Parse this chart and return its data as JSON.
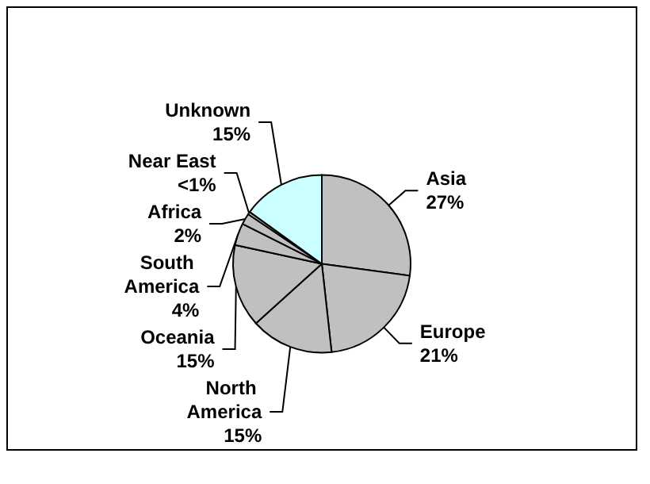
{
  "chart_data": {
    "type": "pie",
    "categories": [
      "Asia",
      "Europe",
      "North America",
      "Oceania",
      "South America",
      "Africa",
      "Near East",
      "Unknown"
    ],
    "values": [
      27,
      21,
      15,
      15,
      4,
      2,
      0.5,
      15
    ],
    "value_labels": [
      "27%",
      "21%",
      "15%",
      "15%",
      "4%",
      "2%",
      "<1%",
      "15%"
    ],
    "colors": [
      "#c0c0c0",
      "#c0c0c0",
      "#c0c0c0",
      "#c0c0c0",
      "#c0c0c0",
      "#c0c0c0",
      "#c0c0c0",
      "#ccffff"
    ],
    "legend": false
  }
}
